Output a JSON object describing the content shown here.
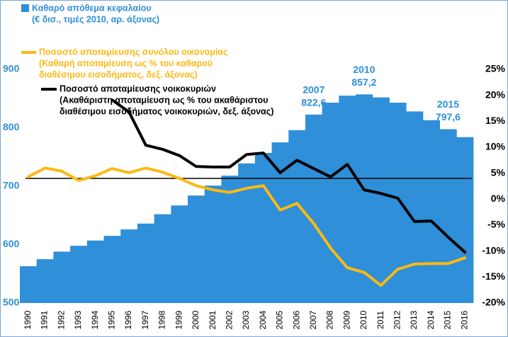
{
  "chart_data": {
    "type": "bar",
    "categories": [
      "1990",
      "1991",
      "1992",
      "1993",
      "1994",
      "1995",
      "1996",
      "1997",
      "1998",
      "1999",
      "2000",
      "2001",
      "2002",
      "2003",
      "2004",
      "2005",
      "2006",
      "2007",
      "2008",
      "2009",
      "2010",
      "2011",
      "2012",
      "2013",
      "2014",
      "2015",
      "2016"
    ],
    "series": [
      {
        "name": "Καθαρό απόθεμα κεφαλαίου",
        "legend_lines": [
          "(€ δισ., τιμές 2010, αρ. άξονας)"
        ],
        "type": "bar",
        "axis": "y",
        "color": "#2f8fd8",
        "values": [
          563,
          575,
          588,
          598,
          607,
          615,
          626,
          636,
          652,
          667,
          684,
          701,
          718,
          739,
          757,
          775,
          796,
          822.6,
          843,
          855,
          857.2,
          852,
          843,
          828,
          813,
          797.6,
          784
        ],
        "value_labels": [
          null,
          null,
          null,
          null,
          null,
          null,
          null,
          null,
          null,
          null,
          null,
          null,
          null,
          null,
          null,
          null,
          null,
          "822,6",
          null,
          null,
          "857,2",
          null,
          null,
          null,
          null,
          "797,6",
          null
        ]
      },
      {
        "name": "Ποσοστό αποταμίευσης συνόλου οικονομίας",
        "legend_lines": [
          "(Καθαρή αποταμίευση ως % του καθαρού",
          "διαθέσιμου εισοδήματος, δεξ. άξονας)"
        ],
        "type": "line",
        "axis": "y2",
        "color": "#fdb913",
        "values": [
          4.3,
          6.0,
          5.4,
          3.6,
          4.5,
          5.9,
          5.1,
          6.0,
          5.2,
          4.0,
          2.6,
          1.8,
          1.3,
          2.1,
          2.6,
          -2.1,
          -0.8,
          -4.7,
          -9.4,
          -13.2,
          -14.1,
          -16.6,
          -13.5,
          -12.5,
          -12.4,
          -12.4,
          -11.3
        ]
      },
      {
        "name": "Ποσοστό αποταμίευσης νοικοκυριών",
        "legend_lines": [
          "(Ακαθάριστη αποταμίευση ως % του ακαθάριστου",
          "διαθέσιμου εισοδήματος νοικοκυριών, δεξ. άξονας)"
        ],
        "type": "line",
        "axis": "y2",
        "color": "#000000",
        "values": [
          null,
          null,
          null,
          null,
          null,
          19.1,
          16.8,
          10.4,
          9.6,
          8.4,
          6.3,
          6.2,
          6.2,
          8.6,
          8.9,
          5.1,
          7.5,
          5.9,
          4.3,
          6.7,
          1.8,
          1.1,
          0.2,
          -4.3,
          -4.2,
          -7.3,
          -10.2
        ]
      }
    ],
    "reference_line": 4,
    "ylim": [
      500,
      900
    ],
    "yticks": [
      500,
      600,
      700,
      800,
      900
    ],
    "y2lim": [
      -20,
      25
    ],
    "y2ticks": [
      {
        "value": 25,
        "label": "25%"
      },
      {
        "value": 20,
        "label": "20%"
      },
      {
        "value": 15,
        "label": "15%"
      },
      {
        "value": 10,
        "label": "10%"
      },
      {
        "value": 5,
        "label": "5%"
      },
      {
        "value": 0,
        "label": "0%"
      },
      {
        "value": -5,
        "label": "-5%"
      },
      {
        "value": -10,
        "label": "-10%"
      },
      {
        "value": -15,
        "label": "-15%"
      },
      {
        "value": -20,
        "label": "-20%"
      }
    ]
  }
}
